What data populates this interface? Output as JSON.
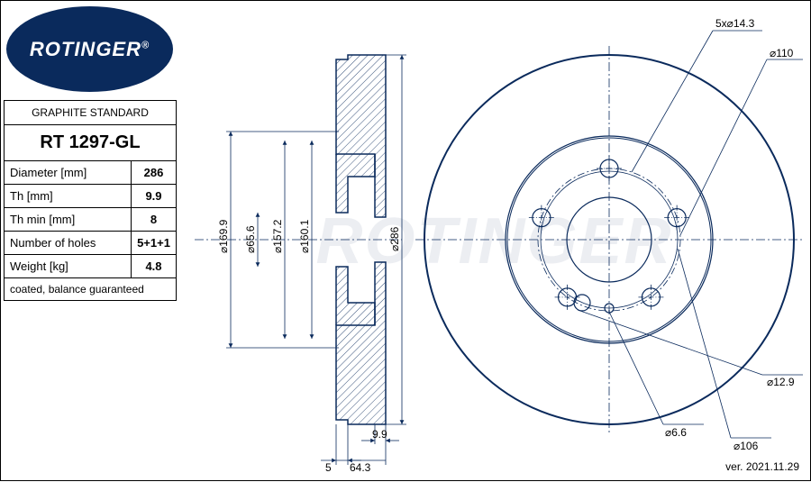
{
  "brand": "ROTINGER",
  "registered": "®",
  "standard": "GRAPHITE STANDARD",
  "part_number": "RT 1297-GL",
  "specs": [
    {
      "label": "Diameter [mm]",
      "value": "286"
    },
    {
      "label": "Th [mm]",
      "value": "9.9"
    },
    {
      "label": "Th min [mm]",
      "value": "8"
    },
    {
      "label": "Number of holes",
      "value": "5+1+1"
    },
    {
      "label": "Weight [kg]",
      "value": "4.8"
    }
  ],
  "note": "coated, balance guaranteed",
  "version": "ver. 2021.11.29",
  "colors": {
    "brand_blue": "#0a2a5c",
    "line_blue": "#1044a0",
    "bg": "#ffffff"
  },
  "cross_section": {
    "dims_vertical": [
      "⌀169.9",
      "⌀65.6",
      "⌀157.2",
      "⌀160.1",
      "⌀286"
    ],
    "dims_horizontal": [
      "5",
      "9.9",
      "64.3"
    ]
  },
  "front_view": {
    "outer_diameter": 286,
    "annotations": {
      "bolt_pattern": "5x⌀14.3",
      "pcd": "⌀110",
      "small_hole": "⌀6.6",
      "pilot": "⌀106",
      "locator": "⌀12.9"
    },
    "bolt_count": 5,
    "bolt_circle_r": 55,
    "bolt_hole_r": 7.15,
    "center_hole_r": 32.8
  }
}
